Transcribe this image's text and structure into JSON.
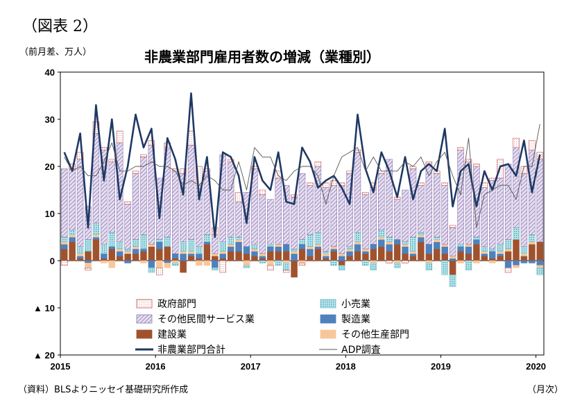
{
  "figure_label": "（図表 2）",
  "unit_label": "（前月差、万人）",
  "source_note": "（資料）BLSよりニッセイ基礎研究所作成",
  "x_unit": "（月次）",
  "chart_data": {
    "type": "bar",
    "title": "非農業部門雇用者数の増減（業種別）",
    "xlabel": "",
    "ylabel": "",
    "ylim": [
      -20,
      40
    ],
    "y_ticks": [
      {
        "value": 40,
        "label": "40"
      },
      {
        "value": 30,
        "label": "30"
      },
      {
        "value": 20,
        "label": "20"
      },
      {
        "value": 10,
        "label": "10"
      },
      {
        "value": 0,
        "label": "0"
      },
      {
        "value": -10,
        "label": "▲ 10"
      },
      {
        "value": -20,
        "label": "▲ 20"
      }
    ],
    "x_ticks": [
      {
        "index": 0,
        "label": "2015"
      },
      {
        "index": 12,
        "label": "2016"
      },
      {
        "index": 24,
        "label": "2017"
      },
      {
        "index": 36,
        "label": "2018"
      },
      {
        "index": 48,
        "label": "2019"
      },
      {
        "index": 60,
        "label": "2020"
      }
    ],
    "months": [
      "2015-01",
      "2015-02",
      "2015-03",
      "2015-04",
      "2015-05",
      "2015-06",
      "2015-07",
      "2015-08",
      "2015-09",
      "2015-10",
      "2015-11",
      "2015-12",
      "2016-01",
      "2016-02",
      "2016-03",
      "2016-04",
      "2016-05",
      "2016-06",
      "2016-07",
      "2016-08",
      "2016-09",
      "2016-10",
      "2016-11",
      "2016-12",
      "2017-01",
      "2017-02",
      "2017-03",
      "2017-04",
      "2017-05",
      "2017-06",
      "2017-07",
      "2017-08",
      "2017-09",
      "2017-10",
      "2017-11",
      "2017-12",
      "2018-01",
      "2018-02",
      "2018-03",
      "2018-04",
      "2018-05",
      "2018-06",
      "2018-07",
      "2018-08",
      "2018-09",
      "2018-10",
      "2018-11",
      "2018-12",
      "2019-01",
      "2019-02",
      "2019-03",
      "2019-04",
      "2019-05",
      "2019-06",
      "2019-07",
      "2019-08",
      "2019-09",
      "2019-10",
      "2019-11",
      "2019-12",
      "2020-01"
    ],
    "legend_placement": "bottom",
    "series": [
      {
        "name": "政府部門",
        "kind": "bar",
        "color": "#c0504d",
        "pattern": "dots-red",
        "values": [
          -1.0,
          1.0,
          1.5,
          -0.5,
          2.5,
          0.5,
          0.5,
          2.5,
          0.5,
          0.5,
          0.5,
          1.0,
          -1.5,
          1.0,
          0.5,
          1.0,
          3.0,
          4.0,
          0.5,
          1.5,
          -2.5,
          0.5,
          2.0,
          0.0,
          0.5,
          1.0,
          -1.0,
          1.5,
          -0.5,
          0.5,
          -0.5,
          0.5,
          1.0,
          1.0,
          1.0,
          0.5,
          0.5,
          0.5,
          0.5,
          1.0,
          0.5,
          -0.5,
          0.5,
          -0.5,
          0.5,
          0.5,
          0.5,
          0.5,
          0.5,
          0.5,
          0.5,
          0.5,
          0.5,
          1.0,
          0.5,
          4.0,
          -1.0,
          2.0,
          1.5,
          2.0,
          1.5
        ]
      },
      {
        "name": "その他民間サービス業",
        "kind": "bar",
        "color": "#8e78b4",
        "pattern": "hatch-purple",
        "values": [
          14.5,
          13.0,
          18.5,
          7.0,
          19.0,
          20.0,
          15.0,
          21.0,
          9.5,
          14.0,
          16.5,
          21.0,
          13.0,
          19.0,
          17.5,
          14.5,
          20.0,
          13.0,
          13.5,
          4.0,
          18.5,
          16.0,
          7.5,
          11.5,
          16.0,
          12.5,
          9.5,
          14.0,
          12.5,
          11.0,
          14.0,
          10.5,
          14.0,
          13.5,
          13.0,
          14.5,
          15.5,
          17.0,
          11.5,
          12.0,
          12.0,
          16.5,
          8.5,
          11.0,
          14.5,
          10.0,
          17.0,
          13.5,
          12.5,
          6.0,
          20.0,
          17.5,
          15.0,
          12.5,
          14.5,
          14.0,
          16.0,
          17.0,
          15.5,
          18.0,
          17.5
        ]
      },
      {
        "name": "小売業",
        "kind": "bar",
        "color": "#6cc0cc",
        "pattern": "dots-teal",
        "values": [
          1.0,
          1.0,
          1.5,
          2.5,
          2.5,
          2.0,
          3.0,
          1.5,
          0.5,
          1.5,
          3.0,
          -1.0,
          0.5,
          2.0,
          -0.5,
          2.0,
          2.5,
          1.5,
          1.5,
          -0.5,
          2.0,
          1.5,
          0.5,
          -0.5,
          1.0,
          -0.5,
          0.5,
          -1.0,
          -1.5,
          0.5,
          1.0,
          2.5,
          2.5,
          0.5,
          -1.0,
          -1.0,
          0.5,
          2.0,
          -1.0,
          -1.5,
          1.5,
          1.0,
          -1.0,
          0.5,
          3.0,
          0.5,
          -1.5,
          0.5,
          -3.0,
          -2.5,
          0.5,
          -2.0,
          0.5,
          1.0,
          0.5,
          1.5,
          2.0,
          2.5,
          1.5,
          1.5,
          -1.5
        ]
      },
      {
        "name": "製造業",
        "kind": "bar",
        "color": "#4f81bd",
        "pattern": "solid",
        "values": [
          1.0,
          1.0,
          0.5,
          -0.5,
          0.5,
          1.0,
          0.5,
          1.0,
          -0.5,
          1.0,
          0.5,
          -1.5,
          1.5,
          -0.5,
          1.0,
          1.5,
          0.5,
          1.0,
          0.5,
          -1.5,
          1.0,
          1.0,
          2.0,
          1.5,
          1.0,
          0.5,
          1.0,
          1.0,
          1.5,
          1.5,
          1.0,
          1.5,
          0.5,
          0.5,
          0.5,
          1.0,
          1.0,
          1.5,
          0.5,
          1.0,
          1.5,
          1.5,
          1.0,
          1.5,
          0.5,
          1.0,
          2.0,
          1.5,
          1.5,
          0.5,
          1.0,
          1.5,
          1.0,
          0.5,
          1.5,
          0.5,
          -1.5,
          -1.0,
          -0.5,
          -0.5,
          -1.0
        ]
      },
      {
        "name": "建設業",
        "kind": "bar",
        "color": "#a0522d",
        "pattern": "solid",
        "values": [
          2.5,
          4.0,
          0.5,
          2.0,
          4.5,
          0.5,
          2.5,
          1.0,
          1.5,
          1.5,
          2.0,
          3.0,
          2.5,
          3.0,
          0.5,
          -2.5,
          1.0,
          0.5,
          3.5,
          1.0,
          0.5,
          2.0,
          2.0,
          1.5,
          1.0,
          0.5,
          2.0,
          2.0,
          2.0,
          -3.5,
          2.5,
          1.0,
          2.5,
          0.5,
          2.0,
          -1.0,
          1.0,
          2.0,
          1.5,
          2.5,
          3.0,
          2.0,
          3.5,
          1.5,
          1.0,
          4.0,
          1.5,
          2.5,
          1.5,
          -3.0,
          2.0,
          1.5,
          3.5,
          1.0,
          0.5,
          1.0,
          2.0,
          4.5,
          1.0,
          3.5,
          4.0
        ]
      },
      {
        "name": "その他生産部門",
        "kind": "bar",
        "color": "#f7c79b",
        "pattern": "solid",
        "values": [
          0.5,
          0.5,
          0.5,
          -1.0,
          0.5,
          -0.5,
          -1.5,
          0.5,
          0.5,
          0.5,
          -0.5,
          0.5,
          -1.5,
          -1.0,
          -0.5,
          0.5,
          0.5,
          -1.0,
          -1.0,
          0.5,
          0.5,
          0.5,
          0.5,
          -1.0,
          0.5,
          0.5,
          -1.0,
          0.5,
          -0.5,
          0.5,
          -0.5,
          0.5,
          0.5,
          0.5,
          0.5,
          0.5,
          0.5,
          0.5,
          0.5,
          -0.5,
          0.5,
          0.5,
          -0.5,
          0.5,
          0.5,
          0.5,
          -0.5,
          0.5,
          0.5,
          0.5,
          -0.5,
          0.5,
          -0.5,
          0.5,
          -0.5,
          0.5,
          0.5,
          -0.5,
          0.5,
          0.5,
          -0.5
        ]
      },
      {
        "name": "非農業部門合計",
        "kind": "line",
        "color": "#1f3864",
        "values": [
          23.0,
          19.0,
          27.0,
          7.0,
          33.0,
          17.0,
          30.0,
          13.0,
          20.0,
          31.0,
          24.0,
          28.0,
          9.0,
          26.0,
          21.5,
          14.0,
          35.5,
          13.0,
          22.0,
          5.0,
          23.0,
          22.0,
          18.0,
          8.0,
          22.0,
          17.0,
          15.0,
          23.0,
          12.5,
          12.0,
          24.0,
          21.0,
          15.5,
          17.0,
          18.0,
          15.5,
          12.0,
          31.0,
          19.5,
          14.5,
          23.0,
          19.0,
          13.5,
          22.0,
          13.0,
          19.0,
          20.5,
          19.0,
          28.0,
          11.5,
          19.0,
          20.5,
          11.5,
          19.0,
          15.0,
          20.0,
          20.5,
          18.0,
          25.5,
          14.5,
          22.5
        ]
      },
      {
        "name": "ADP調査",
        "kind": "line",
        "color": "#555555",
        "values": [
          22.0,
          19.0,
          20.0,
          18.0,
          18.0,
          21.0,
          25.0,
          19.0,
          19.0,
          20.0,
          20.0,
          21.0,
          20.0,
          20.0,
          19.0,
          16.0,
          17.0,
          16.0,
          18.0,
          17.0,
          15.0,
          15.0,
          21.0,
          15.0,
          24.0,
          22.0,
          22.0,
          18.0,
          17.0,
          19.0,
          20.0,
          20.0,
          18.0,
          12.0,
          18.0,
          22.0,
          23.0,
          24.0,
          19.0,
          22.0,
          19.0,
          19.0,
          19.0,
          21.0,
          20.0,
          22.0,
          18.0,
          21.0,
          23.0,
          18.0,
          14.0,
          26.0,
          7.0,
          14.0,
          15.0,
          16.0,
          16.0,
          13.0,
          20.0,
          20.0,
          29.0
        ]
      }
    ]
  }
}
